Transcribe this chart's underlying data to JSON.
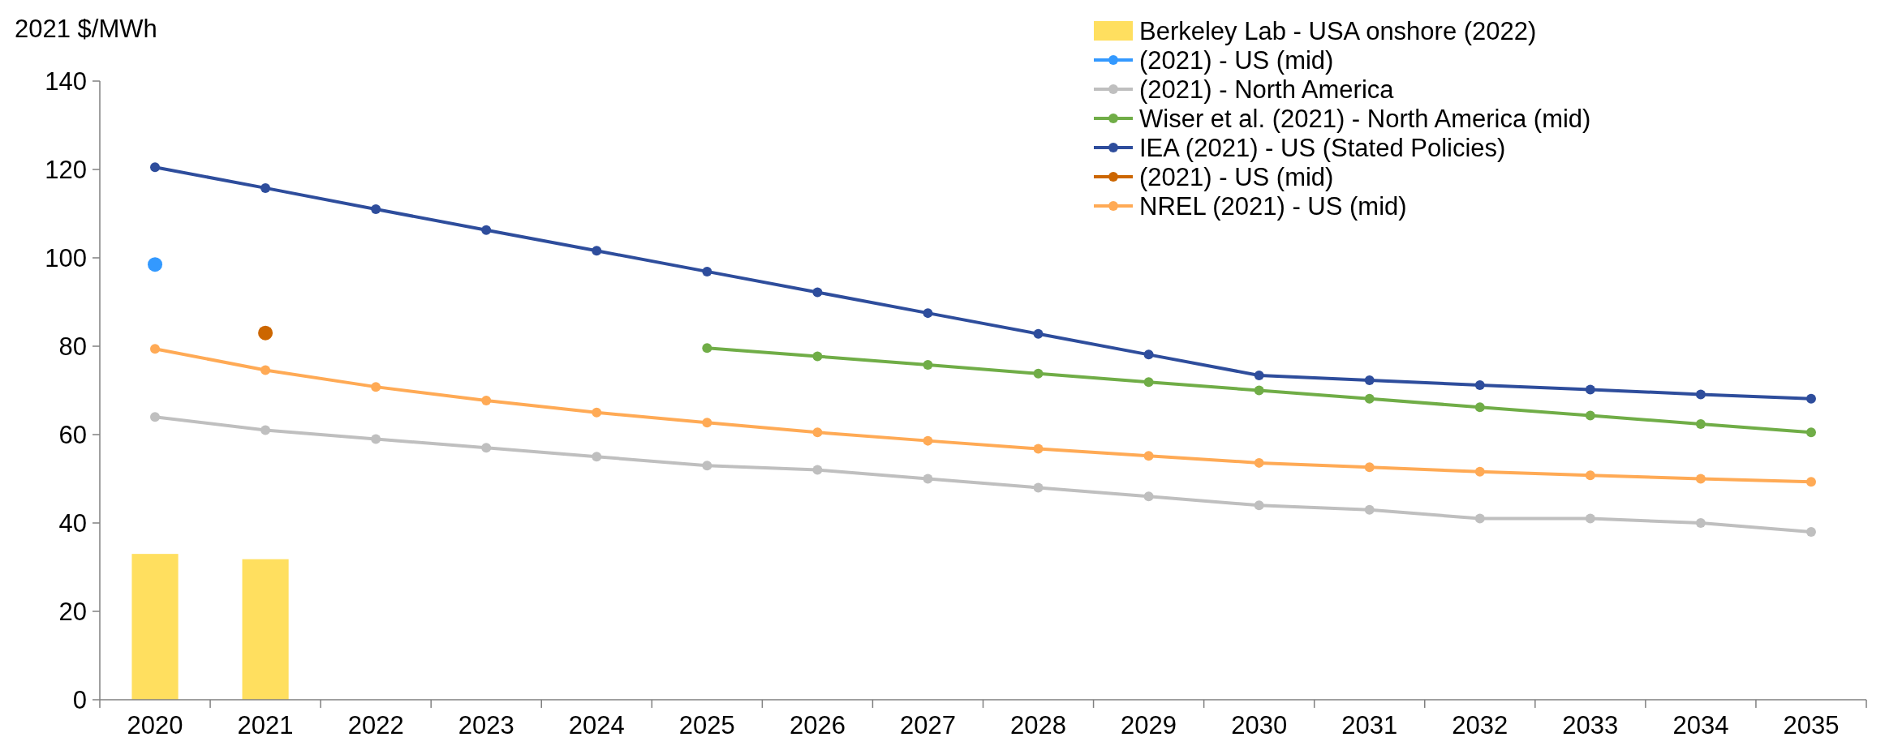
{
  "chart_data": {
    "type": "line",
    "ylabel": "2021 $/MWh",
    "categories": [
      "2020",
      "2021",
      "2022",
      "2023",
      "2024",
      "2025",
      "2026",
      "2027",
      "2028",
      "2029",
      "2030",
      "2031",
      "2032",
      "2033",
      "2034",
      "2035"
    ],
    "ylim": [
      0,
      140
    ],
    "yticks": [
      0,
      20,
      40,
      60,
      80,
      100,
      120,
      140
    ],
    "grid": false,
    "legend": "top right",
    "marker": "circle",
    "series": [
      {
        "name": "Berkeley Lab - USA onshore (2022)",
        "type": "bar",
        "color": "#ffdf5f",
        "values": [
          33,
          31.8,
          null,
          null,
          null,
          null,
          null,
          null,
          null,
          null,
          null,
          null,
          null,
          null,
          null,
          null
        ]
      },
      {
        "name": "(2021) - US (mid)",
        "color": "#3399ff",
        "values": [
          98.5,
          null,
          null,
          null,
          null,
          null,
          null,
          null,
          null,
          null,
          null,
          null,
          null,
          null,
          null,
          null
        ]
      },
      {
        "name": "(2021) - North America",
        "color": "#bfbfbf",
        "values": [
          64,
          61,
          59,
          57,
          55,
          53,
          52,
          50,
          48,
          46,
          44,
          43,
          41,
          41,
          40,
          38
        ]
      },
      {
        "name": "Wiser et al. (2021) - North America (mid)",
        "color": "#70ad47",
        "values": [
          null,
          null,
          null,
          null,
          null,
          79.6,
          77.7,
          75.8,
          73.8,
          71.9,
          70,
          68.1,
          66.2,
          64.3,
          62.4,
          60.5
        ]
      },
      {
        "name": "IEA (2021) - US (Stated Policies)",
        "color": "#2e4d9c",
        "values": [
          120.5,
          115.8,
          111,
          106.3,
          101.6,
          96.9,
          92.2,
          87.5,
          82.8,
          78.1,
          73.4,
          72.3,
          71.2,
          70.2,
          69.1,
          68.1
        ]
      },
      {
        "name": "(2021) - US (mid)",
        "color": "#cc6600",
        "values": [
          null,
          83,
          null,
          null,
          null,
          null,
          null,
          null,
          null,
          null,
          null,
          null,
          null,
          null,
          null,
          null
        ]
      },
      {
        "name": "NREL (2021) - US (mid)",
        "color": "#ffaa55",
        "values": [
          79.4,
          74.6,
          70.8,
          67.7,
          65,
          62.7,
          60.5,
          58.6,
          56.8,
          55.2,
          53.6,
          52.6,
          51.6,
          50.8,
          50,
          49.3
        ]
      }
    ]
  }
}
